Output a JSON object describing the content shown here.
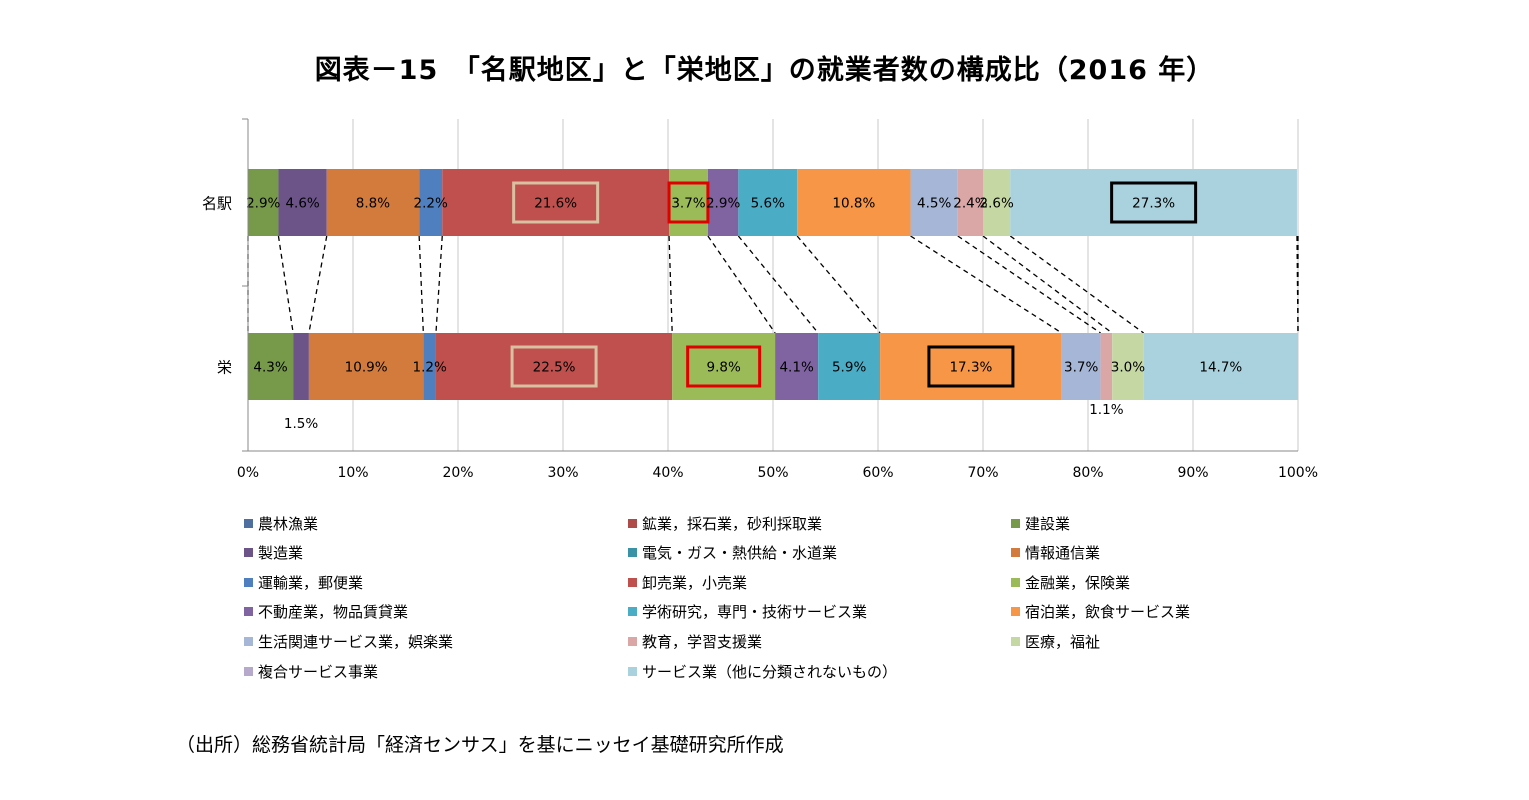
{
  "title": "図表－15　「名駅地区」と「栄地区」の就業者数の構成比（2016 年）",
  "source_note": "（出所）総務省統計局「経済センサス」を基にニッセイ基礎研究所作成",
  "chart_data": {
    "type": "bar",
    "orientation": "horizontal",
    "stacking": "100%",
    "title": "図表－15　「名駅地区」と「栄地区」の就業者数の構成比（2016 年）",
    "categories": [
      "名駅",
      "栄"
    ],
    "xlim": [
      0,
      100
    ],
    "x_ticks": [
      "0%",
      "10%",
      "20%",
      "30%",
      "40%",
      "50%",
      "60%",
      "70%",
      "80%",
      "90%",
      "100%"
    ],
    "grid": "vertical",
    "legend_position": "bottom",
    "series": [
      {
        "name": "農林漁業",
        "color": "#4f6fa0",
        "values": [
          0.0,
          0.0
        ],
        "labels": [
          "",
          ""
        ]
      },
      {
        "name": "鉱業，採石業，砂利採取業",
        "color": "#b04a48",
        "values": [
          0.0,
          0.0
        ],
        "labels": [
          "",
          ""
        ]
      },
      {
        "name": "建設業",
        "color": "#77994a",
        "values": [
          2.9,
          4.3
        ],
        "labels": [
          "2.9%",
          "4.3%"
        ]
      },
      {
        "name": "製造業",
        "color": "#6c5489",
        "values": [
          4.6,
          1.5
        ],
        "labels": [
          "4.6%",
          "1.5%"
        ]
      },
      {
        "name": "電気・ガス・熱供給・水道業",
        "color": "#3a92a6",
        "values": [
          0.0,
          0.0
        ],
        "labels": [
          "",
          ""
        ]
      },
      {
        "name": "情報通信業",
        "color": "#d27b3d",
        "values": [
          8.8,
          10.9
        ],
        "labels": [
          "8.8%",
          "10.9%"
        ]
      },
      {
        "name": "運輸業，郵便業",
        "color": "#4f7fbf",
        "values": [
          2.2,
          1.2
        ],
        "labels": [
          "2.2%",
          "1.2%"
        ]
      },
      {
        "name": "卸売業，小売業",
        "color": "#c0504d",
        "values": [
          21.6,
          22.5
        ],
        "labels": [
          "21.6%",
          "22.5%"
        ]
      },
      {
        "name": "金融業，保険業",
        "color": "#9bbb59",
        "values": [
          3.7,
          9.8
        ],
        "labels": [
          "3.7%",
          "9.8%"
        ]
      },
      {
        "name": "不動産業，物品賃貸業",
        "color": "#8064a2",
        "values": [
          2.9,
          4.1
        ],
        "labels": [
          "2.9%",
          "4.1%"
        ]
      },
      {
        "name": "学術研究，専門・技術サービス業",
        "color": "#4bacc6",
        "values": [
          5.6,
          5.9
        ],
        "labels": [
          "5.6%",
          "5.9%"
        ]
      },
      {
        "name": "宿泊業，飲食サービス業",
        "color": "#f79646",
        "values": [
          10.8,
          17.3
        ],
        "labels": [
          "10.8%",
          "17.3%"
        ]
      },
      {
        "name": "生活関連サービス業，娯楽業",
        "color": "#a5b6d6",
        "values": [
          4.5,
          3.7
        ],
        "labels": [
          "4.5%",
          "3.7%"
        ]
      },
      {
        "name": "教育，学習支援業",
        "color": "#dba7a6",
        "values": [
          2.4,
          1.1
        ],
        "labels": [
          "2.4%",
          "1.1%"
        ]
      },
      {
        "name": "医療，福祉",
        "color": "#c5d8a4",
        "values": [
          2.6,
          3.0
        ],
        "labels": [
          "2.6%",
          "3.0%"
        ]
      },
      {
        "name": "複合サービス事業",
        "color": "#b7a9cc",
        "values": [
          0.0,
          0.0
        ],
        "labels": [
          "",
          ""
        ]
      },
      {
        "name": "サービス業（他に分類されないもの）",
        "color": "#a9d2de",
        "values": [
          27.3,
          14.7
        ],
        "labels": [
          "27.3%",
          "14.7%"
        ]
      }
    ],
    "highlights": [
      {
        "category": "名駅",
        "series": "卸売業，小売業",
        "frame_color": "#d8c0a0"
      },
      {
        "category": "栄",
        "series": "卸売業，小売業",
        "frame_color": "#d8c0a0"
      },
      {
        "category": "名駅",
        "series": "金融業，保険業",
        "frame_color": "#e00000"
      },
      {
        "category": "栄",
        "series": "金融業，保険業",
        "frame_color": "#e00000"
      },
      {
        "category": "名駅",
        "series": "サービス業（他に分類されないもの）",
        "frame_color": "#000000"
      },
      {
        "category": "栄",
        "series": "宿泊業，飲食サービス業",
        "frame_color": "#000000"
      }
    ]
  }
}
